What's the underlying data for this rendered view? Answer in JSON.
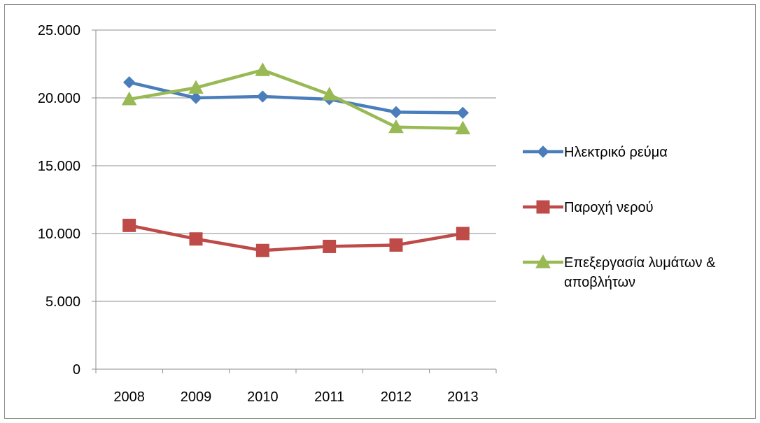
{
  "chart_data": {
    "type": "line",
    "title": "",
    "xlabel": "",
    "ylabel": "",
    "categories": [
      "2008",
      "2009",
      "2010",
      "2011",
      "2012",
      "2013"
    ],
    "ylim": [
      0,
      25000
    ],
    "yticks": [
      0,
      5000,
      10000,
      15000,
      20000,
      25000
    ],
    "ytick_labels": [
      "0",
      "5.000",
      "10.000",
      "15.000",
      "20.000",
      "25.000"
    ],
    "grid": true,
    "legend_position": "right",
    "series": [
      {
        "name": "Ηλεκτρικό ρεύμα",
        "color": "#4a7ebb",
        "marker": "diamond",
        "values": [
          21150,
          20000,
          20100,
          19900,
          18950,
          18900
        ]
      },
      {
        "name": "Παροχή νερού",
        "color": "#be4b48",
        "marker": "square",
        "values": [
          10600,
          9600,
          8750,
          9050,
          9150,
          10000
        ]
      },
      {
        "name": "Επεξεργασία λυμάτων & αποβλήτων",
        "name_lines": [
          "Επεξεργασία λυμάτων &",
          "αποβλήτων"
        ],
        "color": "#98b954",
        "marker": "triangle",
        "values": [
          19900,
          20750,
          22050,
          20250,
          17850,
          17750
        ]
      }
    ]
  }
}
